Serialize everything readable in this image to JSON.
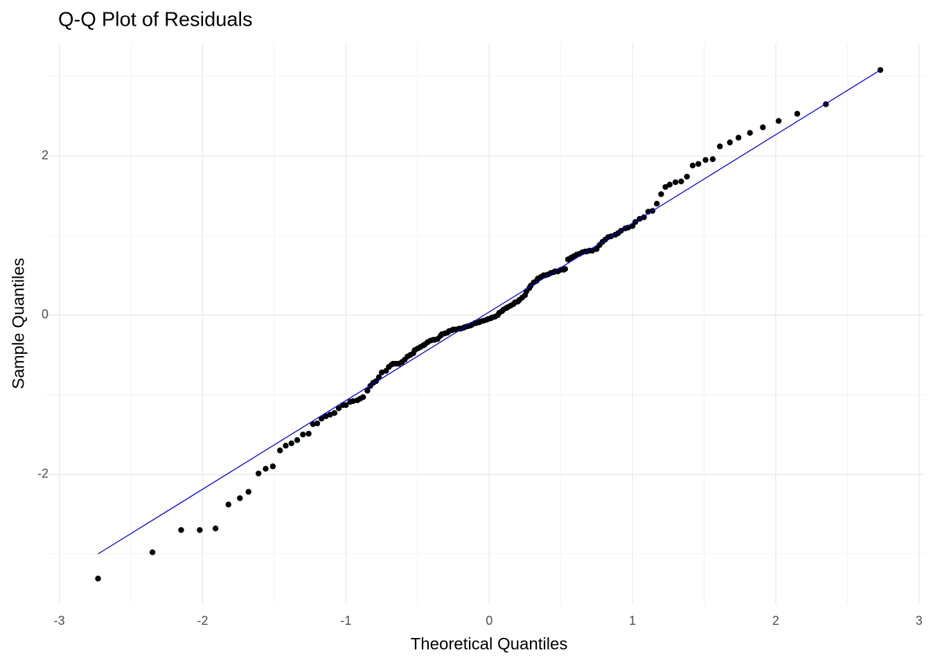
{
  "chart_data": {
    "type": "scatter",
    "title": "Q-Q Plot of Residuals",
    "x_label": "Theoretical Quantiles",
    "y_label": "Sample Quantiles",
    "xlim": [
      -3.1,
      3.04
    ],
    "ylim": [
      -3.63,
      3.42
    ],
    "xticks": [
      -3,
      -2,
      -1,
      0,
      1,
      2,
      3
    ],
    "yticks": [
      -2,
      0,
      2
    ],
    "grid": true,
    "points": {
      "color": "#000000",
      "x": [
        -2.73,
        -2.35,
        -2.15,
        -2.02,
        -1.91,
        -1.82,
        -1.74,
        -1.68,
        -1.61,
        -1.56,
        -1.51,
        -1.46,
        -1.42,
        -1.38,
        -1.34,
        -1.3,
        -1.26,
        -1.23,
        -1.2,
        -1.17,
        -1.14,
        -1.11,
        -1.08,
        -1.05,
        -1.02,
        -1.0,
        -0.97,
        -0.95,
        -0.92,
        -0.9,
        -0.88,
        -0.85,
        -0.83,
        -0.81,
        -0.79,
        -0.77,
        -0.75,
        -0.72,
        -0.7,
        -0.68,
        -0.67,
        -0.65,
        -0.63,
        -0.61,
        -0.59,
        -0.57,
        -0.55,
        -0.53,
        -0.52,
        -0.5,
        -0.48,
        -0.46,
        -0.45,
        -0.43,
        -0.41,
        -0.39,
        -0.38,
        -0.36,
        -0.34,
        -0.33,
        -0.31,
        -0.29,
        -0.28,
        -0.26,
        -0.25,
        -0.23,
        -0.21,
        -0.2,
        -0.18,
        -0.17,
        -0.15,
        -0.13,
        -0.12,
        -0.1,
        -0.09,
        -0.07,
        -0.06,
        -0.04,
        -0.02,
        -0.01,
        0.01,
        0.02,
        0.04,
        0.06,
        0.07,
        0.09,
        0.1,
        0.12,
        0.13,
        0.15,
        0.17,
        0.18,
        0.2,
        0.21,
        0.23,
        0.25,
        0.26,
        0.28,
        0.29,
        0.31,
        0.33,
        0.34,
        0.36,
        0.38,
        0.39,
        0.41,
        0.43,
        0.45,
        0.46,
        0.48,
        0.5,
        0.52,
        0.53,
        0.55,
        0.57,
        0.59,
        0.61,
        0.63,
        0.65,
        0.67,
        0.68,
        0.7,
        0.72,
        0.75,
        0.77,
        0.79,
        0.81,
        0.83,
        0.85,
        0.88,
        0.9,
        0.92,
        0.95,
        0.97,
        1.0,
        1.02,
        1.05,
        1.08,
        1.11,
        1.14,
        1.17,
        1.2,
        1.23,
        1.26,
        1.3,
        1.34,
        1.38,
        1.42,
        1.46,
        1.51,
        1.56,
        1.61,
        1.68,
        1.74,
        1.82,
        1.91,
        2.02,
        2.15,
        2.35,
        2.73
      ],
      "y": [
        -3.31,
        -2.98,
        -2.7,
        -2.7,
        -2.68,
        -2.38,
        -2.3,
        -2.22,
        -1.99,
        -1.93,
        -1.9,
        -1.7,
        -1.64,
        -1.61,
        -1.57,
        -1.5,
        -1.49,
        -1.37,
        -1.36,
        -1.3,
        -1.27,
        -1.25,
        -1.23,
        -1.17,
        -1.13,
        -1.13,
        -1.09,
        -1.08,
        -1.07,
        -1.05,
        -1.03,
        -0.95,
        -0.89,
        -0.85,
        -0.83,
        -0.78,
        -0.72,
        -0.7,
        -0.65,
        -0.62,
        -0.61,
        -0.61,
        -0.61,
        -0.59,
        -0.56,
        -0.52,
        -0.5,
        -0.48,
        -0.44,
        -0.42,
        -0.4,
        -0.38,
        -0.37,
        -0.34,
        -0.32,
        -0.31,
        -0.31,
        -0.3,
        -0.26,
        -0.24,
        -0.23,
        -0.22,
        -0.2,
        -0.19,
        -0.18,
        -0.18,
        -0.17,
        -0.17,
        -0.16,
        -0.15,
        -0.14,
        -0.13,
        -0.12,
        -0.1,
        -0.1,
        -0.09,
        -0.08,
        -0.07,
        -0.06,
        -0.05,
        -0.04,
        -0.03,
        -0.02,
        0.0,
        0.03,
        0.05,
        0.07,
        0.09,
        0.1,
        0.12,
        0.14,
        0.16,
        0.17,
        0.19,
        0.22,
        0.25,
        0.3,
        0.34,
        0.37,
        0.41,
        0.43,
        0.46,
        0.48,
        0.5,
        0.5,
        0.51,
        0.53,
        0.54,
        0.55,
        0.55,
        0.57,
        0.57,
        0.58,
        0.7,
        0.72,
        0.74,
        0.76,
        0.77,
        0.79,
        0.8,
        0.8,
        0.81,
        0.81,
        0.83,
        0.88,
        0.92,
        0.95,
        0.98,
        0.99,
        1.01,
        1.03,
        1.06,
        1.09,
        1.1,
        1.12,
        1.17,
        1.21,
        1.23,
        1.3,
        1.31,
        1.4,
        1.52,
        1.61,
        1.64,
        1.67,
        1.68,
        1.74,
        1.88,
        1.9,
        1.95,
        1.96,
        2.12,
        2.17,
        2.23,
        2.29,
        2.36,
        2.44,
        2.53,
        2.65,
        3.08
      ]
    },
    "reference_line": {
      "color": "#0000cd",
      "x": [
        -2.73,
        2.73
      ],
      "y": [
        -3.0,
        3.08
      ]
    }
  }
}
